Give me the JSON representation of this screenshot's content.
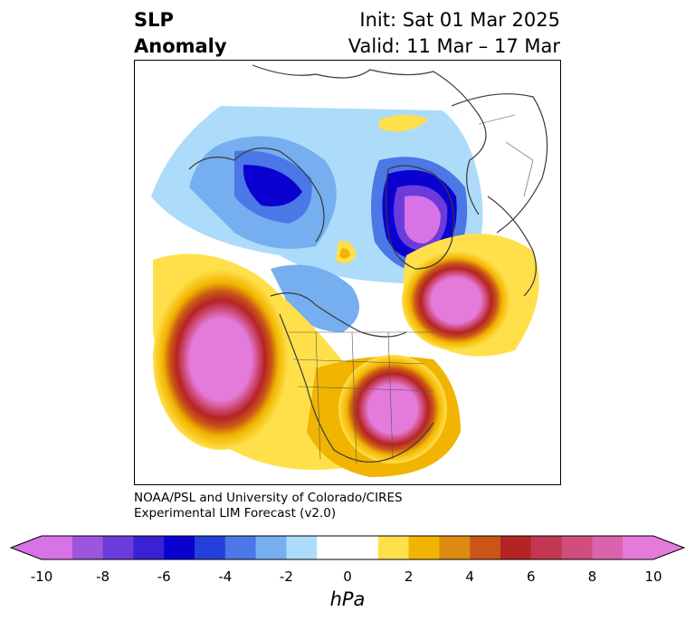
{
  "header": {
    "variable_line1": "SLP",
    "variable_line2": "Anomaly",
    "init": "Init: Sat 01 Mar 2025",
    "valid": "Valid: 11 Mar – 17 Mar"
  },
  "credit": {
    "line1": "NOAA/PSL and University of Colorado/CIRES",
    "line2": "Experimental LIM Forecast (v2.0)"
  },
  "colorbar": {
    "units": "hPa",
    "tick_labels": [
      "-10",
      "-8",
      "-6",
      "-4",
      "-2",
      "0",
      "2",
      "4",
      "6",
      "8",
      "10"
    ],
    "tick_values": [
      -10,
      -8,
      -6,
      -4,
      -2,
      0,
      2,
      4,
      6,
      8,
      10
    ],
    "colors": [
      "#d773e6",
      "#9e55dd",
      "#6b3bdb",
      "#3a21d4",
      "#0a00d0",
      "#2540da",
      "#4c77e6",
      "#76aff0",
      "#acdcf9",
      "#ffffff",
      "#ffffff",
      "#ffe04a",
      "#f1b400",
      "#de8a10",
      "#c95617",
      "#b52424",
      "#c13650",
      "#d04d7d",
      "#da63ae",
      "#e47bdb"
    ],
    "extend_low_color": "#d773e6",
    "extend_high_color": "#e47bdb"
  }
}
